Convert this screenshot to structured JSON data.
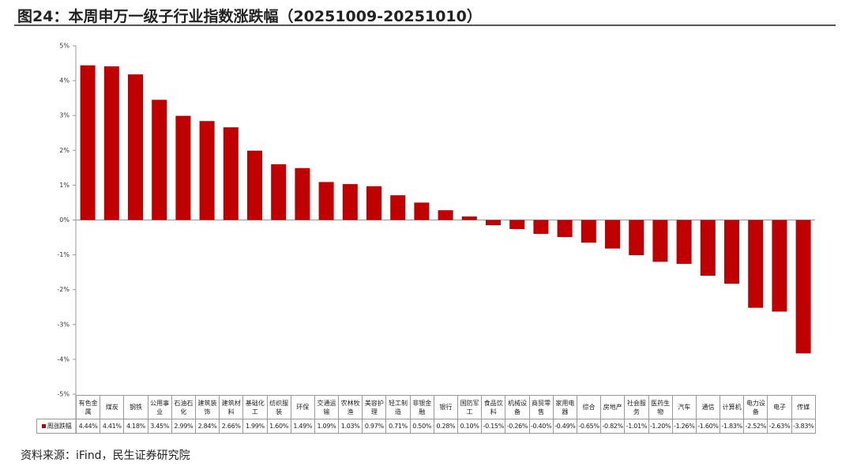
{
  "title": "图24：本周申万一级子行业指数涨跌幅（20251009-20251010）",
  "source": "资料来源：iFind，民生证券研究院",
  "chart_data": {
    "type": "bar",
    "categories": [
      "有色金属",
      "煤炭",
      "钢铁",
      "公用事业",
      "石油石化",
      "建筑装饰",
      "建筑材料",
      "基础化工",
      "纺织服装",
      "环保",
      "交通运输",
      "农林牧渔",
      "美容护理",
      "轻工制造",
      "非银金融",
      "银行",
      "国防军工",
      "食品饮料",
      "机械设备",
      "商贸零售",
      "家用电器",
      "综合",
      "房地产",
      "社会服务",
      "医药生物",
      "汽车",
      "通信",
      "计算机",
      "电力设备",
      "电子",
      "传媒"
    ],
    "series": [
      {
        "name": "周涨跌幅",
        "color": "#c00000",
        "values": [
          4.44,
          4.41,
          4.18,
          3.45,
          2.99,
          2.84,
          2.66,
          1.99,
          1.6,
          1.49,
          1.09,
          1.03,
          0.97,
          0.71,
          0.5,
          0.28,
          0.1,
          -0.15,
          -0.26,
          -0.4,
          -0.49,
          -0.65,
          -0.82,
          -1.01,
          -1.2,
          -1.26,
          -1.6,
          -1.83,
          -2.52,
          -2.63,
          -3.83
        ],
        "value_labels": [
          "4.44%",
          "4.41%",
          "4.18%",
          "3.45%",
          "2.99%",
          "2.84%",
          "2.66%",
          "1.99%",
          "1.60%",
          "1.49%",
          "1.09%",
          "1.03%",
          "0.97%",
          "0.71%",
          "0.50%",
          "0.28%",
          "0.10%",
          "-0.15%",
          "-0.26%",
          "-0.40%",
          "-0.49%",
          "-0.65%",
          "-0.82%",
          "-1.01%",
          "-1.20%",
          "-1.26%",
          "-1.60%",
          "-1.83%",
          "-2.52%",
          "-2.63%",
          "-3.83%"
        ]
      }
    ],
    "ylim": [
      -5,
      5
    ],
    "yticks": [
      {
        "value": 5,
        "label": "5%"
      },
      {
        "value": 4,
        "label": "4%"
      },
      {
        "value": 3,
        "label": "3%"
      },
      {
        "value": 2,
        "label": "2%"
      },
      {
        "value": 1,
        "label": "1%"
      },
      {
        "value": 0,
        "label": "0%"
      },
      {
        "value": -1,
        "label": "-1%"
      },
      {
        "value": -2,
        "label": "-2%"
      },
      {
        "value": -3,
        "label": "-3%"
      },
      {
        "value": -4,
        "label": "-4%"
      },
      {
        "value": -5,
        "label": "-5%"
      }
    ],
    "grid": false
  }
}
